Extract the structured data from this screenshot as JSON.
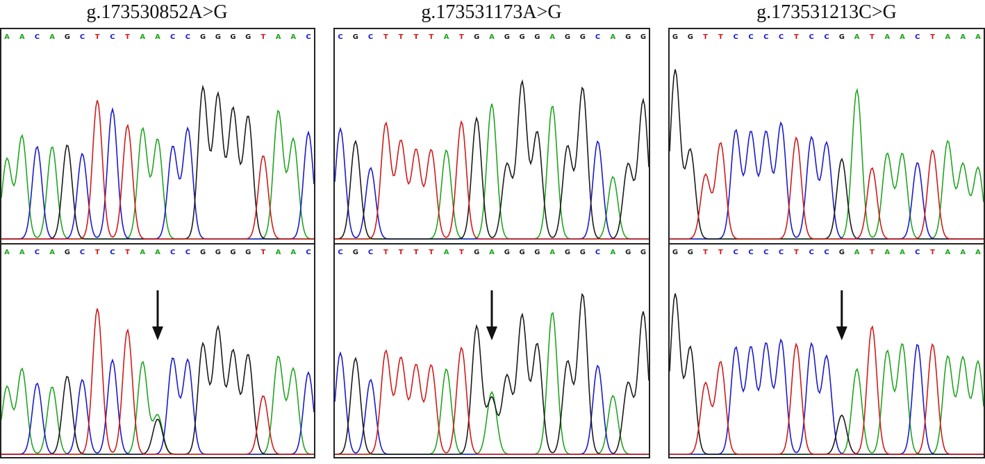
{
  "colors": {
    "A": "#1fa51f",
    "C": "#1a1acd",
    "G": "#1a1a1a",
    "T": "#d01a1a",
    "arrow": "#111111"
  },
  "panels": [
    {
      "title": "g.173530852A>G",
      "seq_top": "AACAGCTCTAACCGGGGTAAC",
      "seq_bottom": "AACAGCTCTAACCGGGGTAAC",
      "arrow_index": 10,
      "heights_top": [
        0.45,
        0.58,
        0.52,
        0.52,
        0.53,
        0.48,
        0.78,
        0.73,
        0.64,
        0.62,
        0.56,
        0.52,
        0.62,
        0.85,
        0.81,
        0.73,
        0.69,
        0.47,
        0.72,
        0.56,
        0.6
      ],
      "heights_bottom": [
        0.38,
        0.48,
        0.4,
        0.38,
        0.44,
        0.42,
        0.82,
        0.53,
        0.7,
        0.52,
        0.22,
        0.54,
        0.53,
        0.62,
        0.71,
        0.58,
        0.56,
        0.33,
        0.55,
        0.48,
        0.46
      ]
    },
    {
      "title": "g.173531173A>G",
      "seq_top": "CGCTTTTATGAGGGAGGCAGG",
      "seq_bottom": "CGCTTTTATGAGGGAGGCAGG",
      "arrow_index": 10,
      "heights_top": [
        0.62,
        0.55,
        0.4,
        0.65,
        0.55,
        0.5,
        0.5,
        0.5,
        0.66,
        0.68,
        0.76,
        0.42,
        0.88,
        0.6,
        0.75,
        0.52,
        0.85,
        0.55,
        0.35,
        0.42,
        0.78
      ],
      "heights_bottom": [
        0.57,
        0.54,
        0.42,
        0.58,
        0.54,
        0.5,
        0.5,
        0.48,
        0.6,
        0.72,
        0.35,
        0.44,
        0.78,
        0.62,
        0.8,
        0.52,
        0.9,
        0.5,
        0.33,
        0.4,
        0.8
      ]
    },
    {
      "title": "g.173531213C>G",
      "seq_top": "GGTTCCCCTCCGATAACTAAA",
      "seq_bottom": "GGTTCCCCTCCGATAACTAAA",
      "arrow_index": 11,
      "heights_top": [
        0.95,
        0.5,
        0.36,
        0.54,
        0.61,
        0.6,
        0.6,
        0.65,
        0.57,
        0.57,
        0.54,
        0.45,
        0.84,
        0.4,
        0.48,
        0.48,
        0.43,
        0.5,
        0.55,
        0.42,
        0.4
      ],
      "heights_bottom": [
        0.9,
        0.6,
        0.4,
        0.52,
        0.6,
        0.6,
        0.62,
        0.64,
        0.62,
        0.62,
        0.55,
        0.22,
        0.48,
        0.72,
        0.58,
        0.62,
        0.62,
        0.62,
        0.55,
        0.54,
        0.52
      ]
    }
  ]
}
